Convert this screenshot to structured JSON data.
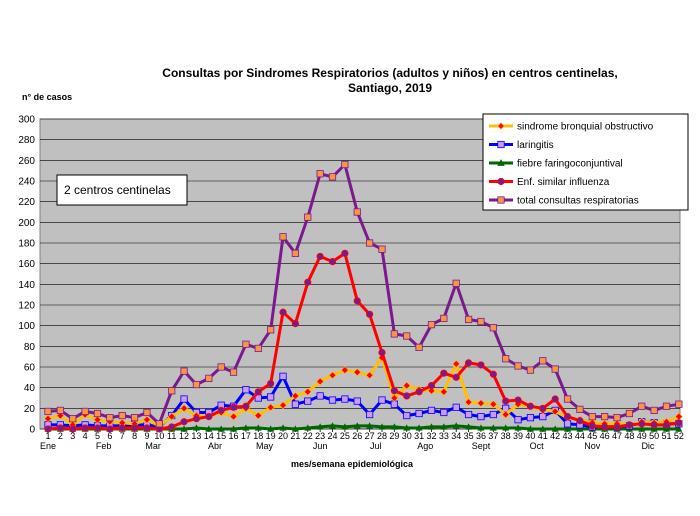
{
  "chart_data": {
    "type": "line",
    "title_line1": "Consultas por Sindromes Respiratorios (adultos y niños) en centros centinelas,",
    "title_line2": "Santiago, 2019",
    "ylabel": "n° de casos",
    "xlabel": "mes/semana epidemiológica",
    "annotation": "2 centros centinelas",
    "ylim": [
      0,
      300
    ],
    "yticks": [
      0,
      20,
      40,
      60,
      80,
      100,
      120,
      140,
      160,
      180,
      200,
      220,
      240,
      260,
      280,
      300
    ],
    "weeks": [
      1,
      2,
      3,
      4,
      5,
      6,
      7,
      8,
      9,
      10,
      11,
      12,
      13,
      14,
      15,
      16,
      17,
      18,
      19,
      20,
      21,
      22,
      23,
      24,
      25,
      26,
      27,
      28,
      29,
      30,
      31,
      32,
      33,
      34,
      35,
      36,
      37,
      38,
      39,
      40,
      41,
      42,
      43,
      44,
      45,
      46,
      47,
      48,
      49,
      50,
      51,
      52
    ],
    "week_labels": [
      "1",
      "2",
      "3",
      "4",
      "5",
      "6",
      "7",
      "8",
      "9",
      "10",
      "11",
      "12",
      "13",
      "14",
      "15",
      "16",
      "17",
      "18",
      "19",
      "20",
      "21",
      "22",
      "23",
      "24",
      "25",
      "26",
      "27",
      "28",
      "29",
      "30",
      "31",
      "32",
      "33",
      "34",
      "35",
      "36",
      "37",
      "38",
      "39",
      "40",
      "41",
      "42",
      "43",
      "44",
      "45",
      "46",
      "47",
      "48",
      "49",
      "50",
      "51",
      "52"
    ],
    "months": [
      {
        "label": "Ene",
        "week": 1
      },
      {
        "label": "Feb",
        "week": 5.5
      },
      {
        "label": "Mar",
        "week": 9.5
      },
      {
        "label": "Abr",
        "week": 14.5
      },
      {
        "label": "May",
        "week": 18.5
      },
      {
        "label": "Jun",
        "week": 23
      },
      {
        "label": "Jul",
        "week": 27.5
      },
      {
        "label": "Ago",
        "week": 31.5
      },
      {
        "label": "Sept",
        "week": 36
      },
      {
        "label": "Oct",
        "week": 40.5
      },
      {
        "label": "Nov",
        "week": 45
      },
      {
        "label": "Dic",
        "week": 49.5
      }
    ],
    "series": [
      {
        "name": "total consultas respiratorias",
        "color": "#7B1A8C",
        "marker_fill": "#F79646",
        "marker": "square",
        "values": [
          17,
          18,
          10,
          17,
          15,
          11,
          13,
          11,
          16,
          5,
          37,
          56,
          43,
          49,
          60,
          55,
          82,
          78,
          96,
          186,
          170,
          205,
          247,
          244,
          256,
          210,
          180,
          174,
          92,
          90,
          79,
          101,
          107,
          141,
          106,
          104,
          98,
          68,
          61,
          57,
          66,
          58,
          29,
          19,
          12,
          12,
          11,
          15,
          22,
          18,
          22,
          24
        ]
      },
      {
        "name": "Enf. similar influenza",
        "color": "#FF0000",
        "marker_fill": "#7B1A8C",
        "marker": "circle",
        "values": [
          0,
          1,
          0,
          1,
          1,
          0,
          1,
          1,
          1,
          0,
          2,
          7,
          10,
          12,
          18,
          21,
          22,
          36,
          44,
          113,
          102,
          142,
          167,
          162,
          170,
          124,
          111,
          74,
          37,
          32,
          36,
          42,
          54,
          50,
          64,
          62,
          53,
          27,
          28,
          22,
          20,
          29,
          12,
          8,
          3,
          2,
          2,
          4,
          5,
          4,
          4,
          6
        ]
      },
      {
        "name": "sindrome bronquial obstructivo",
        "color": "#FFC000",
        "marker_fill": "#FF0000",
        "marker": "diamond",
        "values": [
          10,
          13,
          4,
          14,
          9,
          7,
          6,
          5,
          9,
          3,
          12,
          20,
          13,
          12,
          16,
          12,
          20,
          13,
          21,
          23,
          32,
          36,
          46,
          52,
          57,
          55,
          52,
          69,
          30,
          42,
          38,
          37,
          36,
          63,
          26,
          25,
          24,
          14,
          24,
          22,
          18,
          17,
          11,
          9,
          6,
          5,
          5,
          4,
          7,
          6,
          7,
          12
        ]
      },
      {
        "name": "laringitis",
        "color": "#0000FF",
        "marker_fill": "#CC99FF",
        "marker": "square",
        "values": [
          4,
          4,
          3,
          4,
          3,
          3,
          3,
          4,
          4,
          2,
          13,
          29,
          16,
          16,
          23,
          22,
          38,
          30,
          31,
          51,
          24,
          27,
          32,
          28,
          29,
          27,
          14,
          28,
          24,
          13,
          15,
          18,
          16,
          21,
          14,
          12,
          14,
          20,
          9,
          11,
          12,
          18,
          5,
          4,
          2,
          3,
          2,
          3,
          7,
          6,
          5,
          5
        ]
      },
      {
        "name": "fiebre faringoconjuntival",
        "color": "#006600",
        "marker_fill": "#006600",
        "marker": "triangle",
        "values": [
          0,
          0,
          0,
          0,
          0,
          0,
          0,
          0,
          0,
          0,
          0,
          0,
          1,
          0,
          0,
          0,
          1,
          1,
          0,
          1,
          0,
          1,
          2,
          3,
          2,
          3,
          3,
          2,
          2,
          1,
          1,
          2,
          2,
          3,
          2,
          1,
          1,
          1,
          1,
          0,
          0,
          0,
          0,
          0,
          0,
          0,
          0,
          0,
          0,
          0,
          0,
          0
        ]
      }
    ],
    "legend": [
      {
        "label": "sindrome bronquial obstructivo",
        "color": "#FFC000",
        "marker_fill": "#FF0000",
        "marker": "diamond"
      },
      {
        "label": "laringitis",
        "color": "#0000FF",
        "marker_fill": "#CC99FF",
        "marker": "square"
      },
      {
        "label": "fiebre faringoconjuntival",
        "color": "#006600",
        "marker_fill": "#006600",
        "marker": "triangle"
      },
      {
        "label": "Enf. similar influenza",
        "color": "#FF0000",
        "marker_fill": "#7B1A8C",
        "marker": "circle"
      },
      {
        "label": "total consultas respiratorias",
        "color": "#7B1A8C",
        "marker_fill": "#F79646",
        "marker": "square"
      }
    ],
    "plot_background": "#C0C0C0",
    "grid": true
  }
}
